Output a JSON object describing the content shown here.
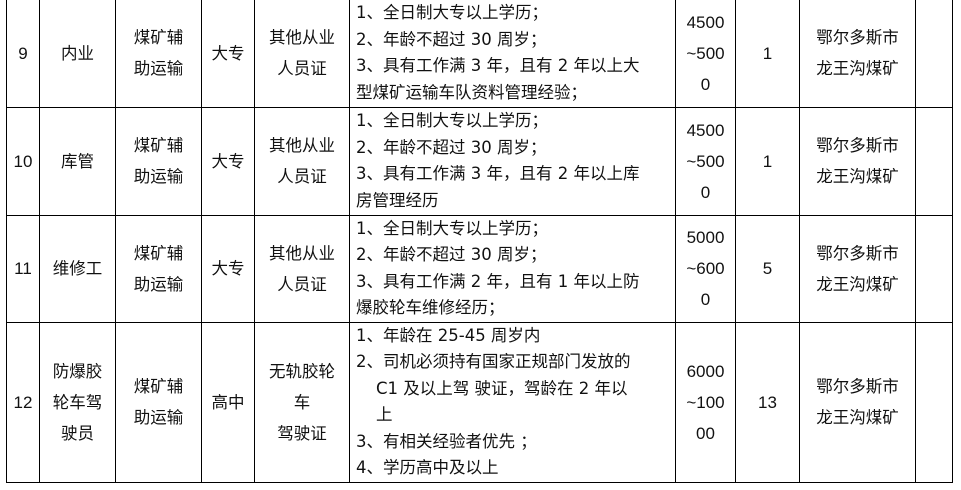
{
  "rows": [
    {
      "no": "9",
      "position": "内业",
      "category": [
        "煤矿辅",
        "助运输"
      ],
      "education": "大专",
      "certificate": [
        "其他从业",
        "人员证"
      ],
      "requirements": [
        "1、全日制大专以上学历；",
        "2、年龄不超过 30 周岁；",
        "3、具有工作满 3 年，且有 2 年以上大",
        "型煤矿运输车队资料管理经验；"
      ],
      "salary": [
        "4500",
        "~500",
        "0"
      ],
      "count": "1",
      "location": [
        "鄂尔多斯市",
        "龙王沟煤矿"
      ],
      "note": ""
    },
    {
      "no": "10",
      "position": "库管",
      "category": [
        "煤矿辅",
        "助运输"
      ],
      "education": "大专",
      "certificate": [
        "其他从业",
        "人员证"
      ],
      "requirements": [
        "1、全日制大专以上学历；",
        "2、年龄不超过 30 周岁；",
        "3、具有工作满 3 年，且有 2 年以上库",
        "房管理经历"
      ],
      "salary": [
        "4500",
        "~500",
        "0"
      ],
      "count": "1",
      "location": [
        "鄂尔多斯市",
        "龙王沟煤矿"
      ],
      "note": ""
    },
    {
      "no": "11",
      "position": "维修工",
      "category": [
        "煤矿辅",
        "助运输"
      ],
      "education": "大专",
      "certificate": [
        "其他从业",
        "人员证"
      ],
      "requirements": [
        "1、全日制大专以上学历；",
        "2、年龄不超过 30 周岁；",
        "3、具有工作满 2 年，且有 1 年以上防",
        "爆胶轮车维修经历；"
      ],
      "salary": [
        "5000",
        "~600",
        "0"
      ],
      "count": "5",
      "location": [
        "鄂尔多斯市",
        "龙王沟煤矿"
      ],
      "note": ""
    },
    {
      "no": "12",
      "position": [
        "防爆胶",
        "轮车驾",
        "驶员"
      ],
      "category": [
        "煤矿辅",
        "助运输"
      ],
      "education": "高中",
      "certificate": [
        "无轨胶轮",
        "车",
        "驾驶证"
      ],
      "requirements": [
        "1、年龄在 25-45 周岁内",
        "2、司机必须持有国家正规部门发放的",
        "C1 及以上驾 驶证，驾龄在 2 年以",
        "上",
        "3、有相关经验者优先 ；",
        "4、学历高中及以上"
      ],
      "salary": [
        "6000",
        "~100",
        "00"
      ],
      "count": "13",
      "location": [
        "鄂尔多斯市",
        "龙王沟煤矿"
      ],
      "note": ""
    }
  ]
}
